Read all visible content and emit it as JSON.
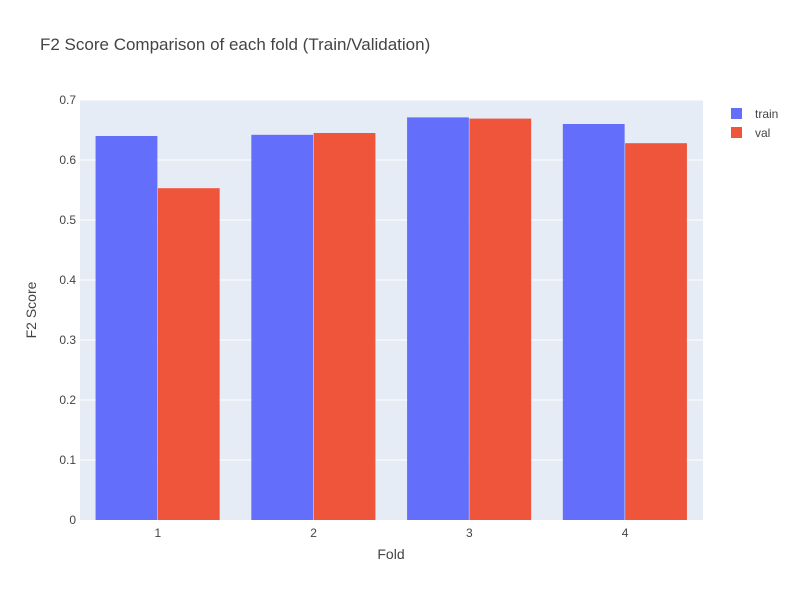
{
  "chart_data": {
    "type": "bar",
    "title": "F2 Score Comparison of each fold (Train/Validation)",
    "xlabel": "Fold",
    "ylabel": "F2 Score",
    "categories": [
      "1",
      "2",
      "3",
      "4"
    ],
    "series": [
      {
        "name": "train",
        "values": [
          0.64,
          0.642,
          0.671,
          0.66
        ]
      },
      {
        "name": "val",
        "values": [
          0.553,
          0.645,
          0.669,
          0.628
        ]
      }
    ],
    "ylim": [
      0,
      0.7
    ],
    "yticks": [
      0,
      0.1,
      0.2,
      0.3,
      0.4,
      0.5,
      0.6,
      0.7
    ],
    "ytick_labels": [
      "0",
      "0.1",
      "0.2",
      "0.3",
      "0.4",
      "0.5",
      "0.6",
      "0.7"
    ],
    "grid": true,
    "legend_position": "top-right",
    "colors": {
      "train": "#636efa",
      "val": "#ef553b",
      "plot_bg": "#e5ecf6",
      "grid": "#ffffff"
    }
  }
}
